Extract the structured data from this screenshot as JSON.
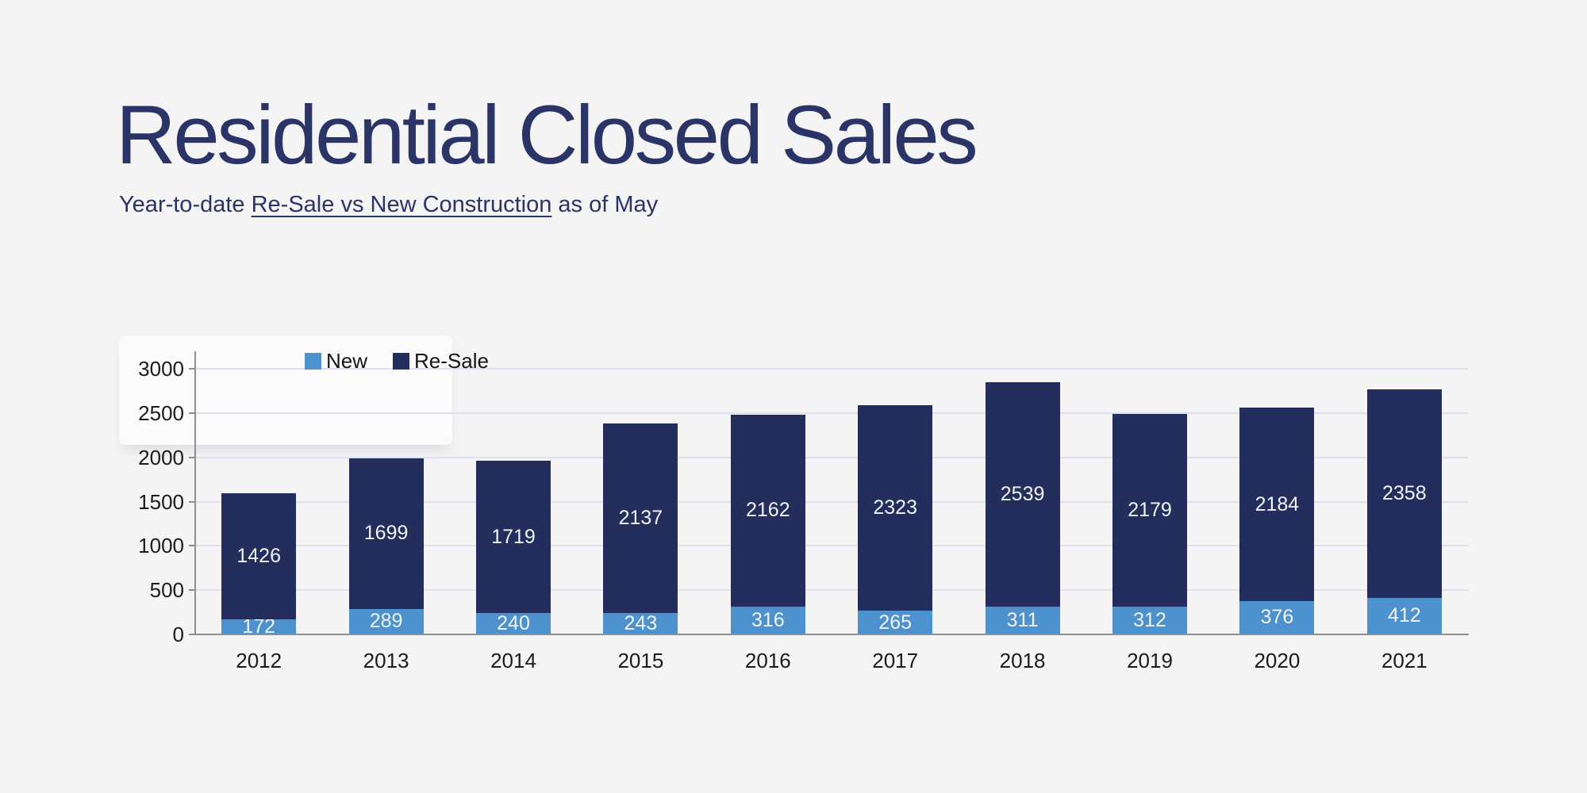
{
  "header": {
    "title": "Residential Closed Sales",
    "subtitle_prefix": "Year-to-date ",
    "subtitle_underlined": "Re-Sale vs New Construction",
    "subtitle_suffix": " as of May"
  },
  "colors": {
    "background": "#f4f4f5",
    "title_text": "#2b3467",
    "axis_text": "#1b1b1d",
    "axis_line": "#8e8e93",
    "gridline": "#dbe1ee",
    "bar_value_text": "#f2f3f6",
    "new_series": "#4d92cf",
    "resale_series": "#242e5c",
    "highlight_box": "#fbfbfc"
  },
  "chart_data": {
    "type": "bar",
    "stacked": true,
    "title": "Residential Closed Sales",
    "subtitle": "Year-to-date Re-Sale vs New Construction as of May",
    "categories": [
      "2012",
      "2013",
      "2014",
      "2015",
      "2016",
      "2017",
      "2018",
      "2019",
      "2020",
      "2021"
    ],
    "series": [
      {
        "name": "New",
        "color": "#4d92cf",
        "values": [
          172,
          289,
          240,
          243,
          316,
          265,
          311,
          312,
          376,
          412
        ]
      },
      {
        "name": "Re-Sale",
        "color": "#242e5c",
        "values": [
          1426,
          1699,
          1719,
          2137,
          2162,
          2323,
          2539,
          2179,
          2184,
          2358
        ]
      }
    ],
    "totals": [
      1598,
      1988,
      1959,
      2380,
      2478,
      2588,
      2850,
      2491,
      2560,
      2770
    ],
    "xlabel": "",
    "ylabel": "",
    "ylim": [
      0,
      3000
    ],
    "y_ticks": [
      0,
      500,
      1000,
      1500,
      2000,
      2500,
      3000
    ],
    "grid": true,
    "value_labels": true,
    "legend_position": "top-inside-left"
  }
}
